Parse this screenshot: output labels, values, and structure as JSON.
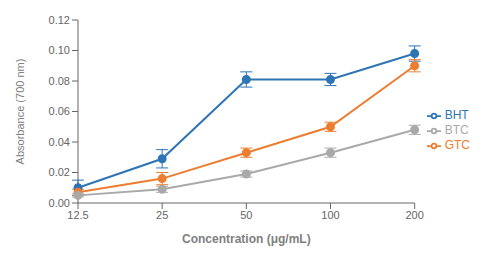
{
  "chart_data": {
    "type": "line",
    "xlabel": "Concentration (μg/mL)",
    "ylabel": "Absorbance (700 nm)",
    "categories": [
      "12.5",
      "25",
      "50",
      "100",
      "200"
    ],
    "series": [
      {
        "name": "BHT",
        "color": "#2E75B6",
        "values": [
          0.01,
          0.029,
          0.081,
          0.081,
          0.098
        ],
        "errors": [
          0.005,
          0.006,
          0.005,
          0.004,
          0.005
        ]
      },
      {
        "name": "GTC",
        "color": "#ED7D31",
        "values": [
          0.007,
          0.016,
          0.033,
          0.05,
          0.09
        ],
        "errors": [
          0.002,
          0.004,
          0.003,
          0.003,
          0.004
        ]
      },
      {
        "name": "BTC",
        "color": "#A9A9A9",
        "values": [
          0.005,
          0.009,
          0.019,
          0.033,
          0.048
        ],
        "errors": [
          0.001,
          0.002,
          0.002,
          0.003,
          0.003
        ]
      }
    ],
    "ylim": [
      0.0,
      0.12
    ],
    "yticks": [
      {
        "value": 0.0,
        "label": "0.00"
      },
      0.02,
      0.04,
      0.06,
      0.08,
      {
        "value": 0.1,
        "label": "0.10"
      },
      0.12
    ],
    "marker": "circle",
    "grid": false,
    "legend": "right"
  }
}
